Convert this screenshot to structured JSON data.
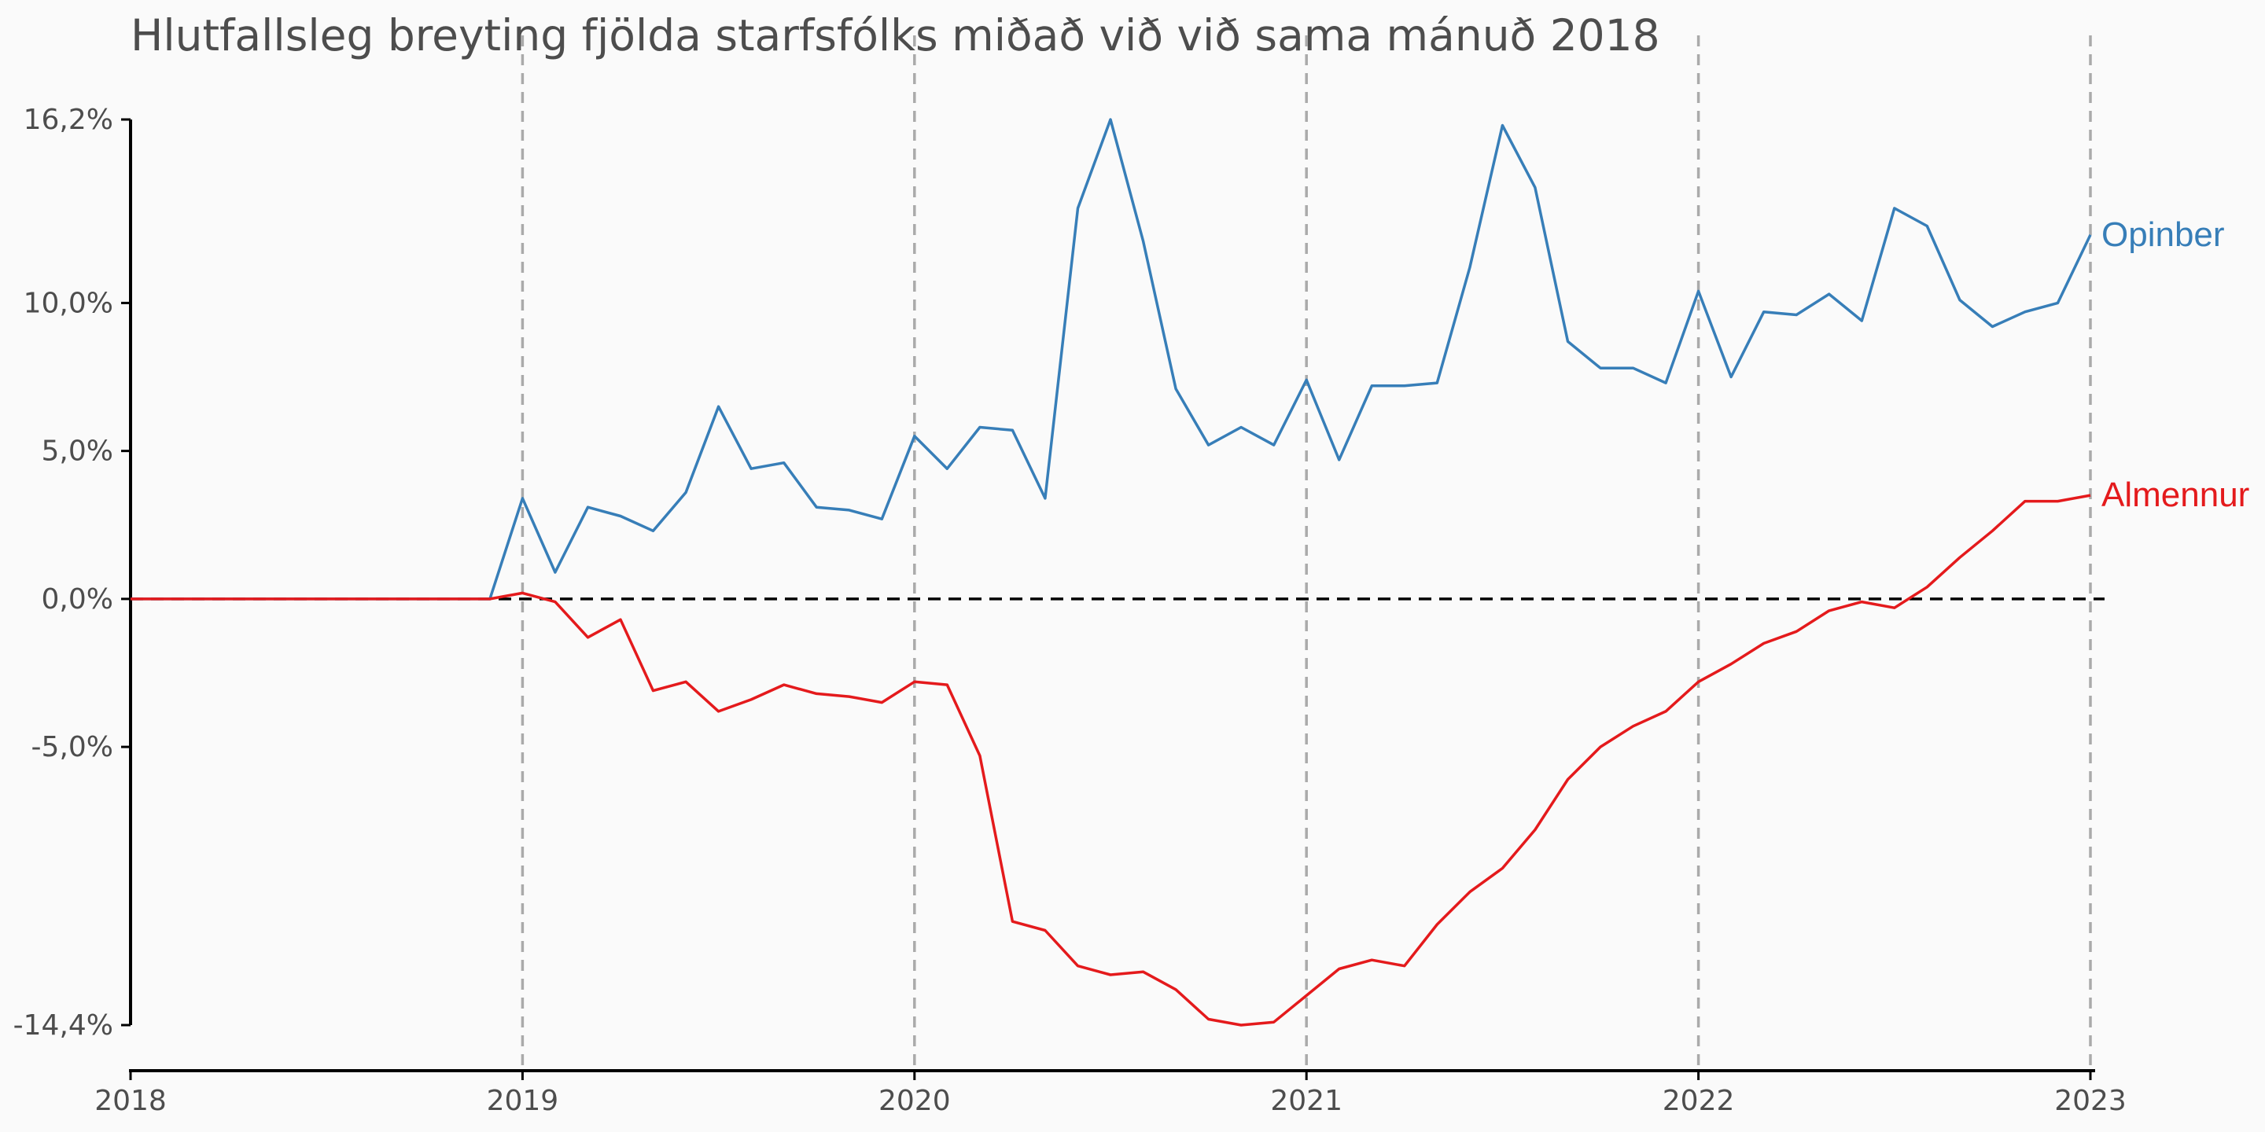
{
  "chart_data": {
    "type": "line",
    "title": "Hlutfallsleg breyting fjölda starfsfólks miðað við við sama mánuð 2018",
    "xlabel": "",
    "ylabel": "",
    "x_start": "2018-01",
    "x_step": "month",
    "xlim": [
      "2018-01",
      "2023-01"
    ],
    "ylim": [
      -14.4,
      16.2
    ],
    "x_ticks": [
      {
        "date": "2018-01",
        "label": "2018"
      },
      {
        "date": "2019-01",
        "label": "2019"
      },
      {
        "date": "2020-01",
        "label": "2020"
      },
      {
        "date": "2021-01",
        "label": "2021"
      },
      {
        "date": "2022-01",
        "label": "2022"
      },
      {
        "date": "2023-01",
        "label": "2023"
      }
    ],
    "y_ticks": [
      {
        "value": 16.2,
        "label": "16,2%"
      },
      {
        "value": 10.0,
        "label": "10,0%"
      },
      {
        "value": 5.0,
        "label": "5,0%"
      },
      {
        "value": 0.0,
        "label": "0,0%"
      },
      {
        "value": -5.0,
        "label": "-5,0%"
      },
      {
        "value": -14.4,
        "label": "-14,4%"
      }
    ],
    "vertical_gridlines": [
      "2019-01",
      "2020-01",
      "2021-01",
      "2022-01",
      "2023-01"
    ],
    "reference_line": 0,
    "series": [
      {
        "name": "Opinber",
        "color": "#377eb8",
        "values": [
          0,
          0,
          0,
          0,
          0,
          0,
          0,
          0,
          0,
          0,
          0,
          0,
          3.4,
          0.9,
          3.1,
          2.8,
          2.3,
          3.6,
          6.5,
          4.4,
          4.6,
          3.1,
          3.0,
          2.7,
          5.5,
          4.4,
          5.8,
          5.7,
          3.4,
          13.2,
          16.2,
          12.1,
          7.1,
          5.2,
          5.8,
          5.2,
          7.4,
          4.7,
          7.2,
          7.2,
          7.3,
          11.2,
          16.0,
          13.9,
          8.7,
          7.8,
          7.8,
          7.3,
          10.4,
          7.5,
          9.7,
          9.6,
          10.3,
          9.4,
          13.2,
          12.6,
          10.1,
          9.2,
          9.7,
          10.0,
          12.3
        ]
      },
      {
        "name": "Almennur",
        "color": "#e41a1c",
        "values": [
          0,
          0,
          0,
          0,
          0,
          0,
          0,
          0,
          0,
          0,
          0,
          0,
          0.2,
          -0.1,
          -1.3,
          -0.7,
          -3.1,
          -2.8,
          -3.8,
          -3.4,
          -2.9,
          -3.2,
          -3.3,
          -3.5,
          -2.8,
          -2.9,
          -5.3,
          -10.9,
          -11.2,
          -12.4,
          -12.7,
          -12.6,
          -13.2,
          -14.2,
          -14.4,
          -14.3,
          -13.4,
          -12.5,
          -12.2,
          -12.4,
          -11.0,
          -9.9,
          -9.1,
          -7.8,
          -6.1,
          -5.0,
          -4.3,
          -3.8,
          -2.8,
          -2.2,
          -1.5,
          -1.1,
          -0.4,
          -0.1,
          -0.3,
          0.4,
          1.4,
          2.3,
          3.3,
          3.3,
          3.5
        ]
      }
    ]
  }
}
